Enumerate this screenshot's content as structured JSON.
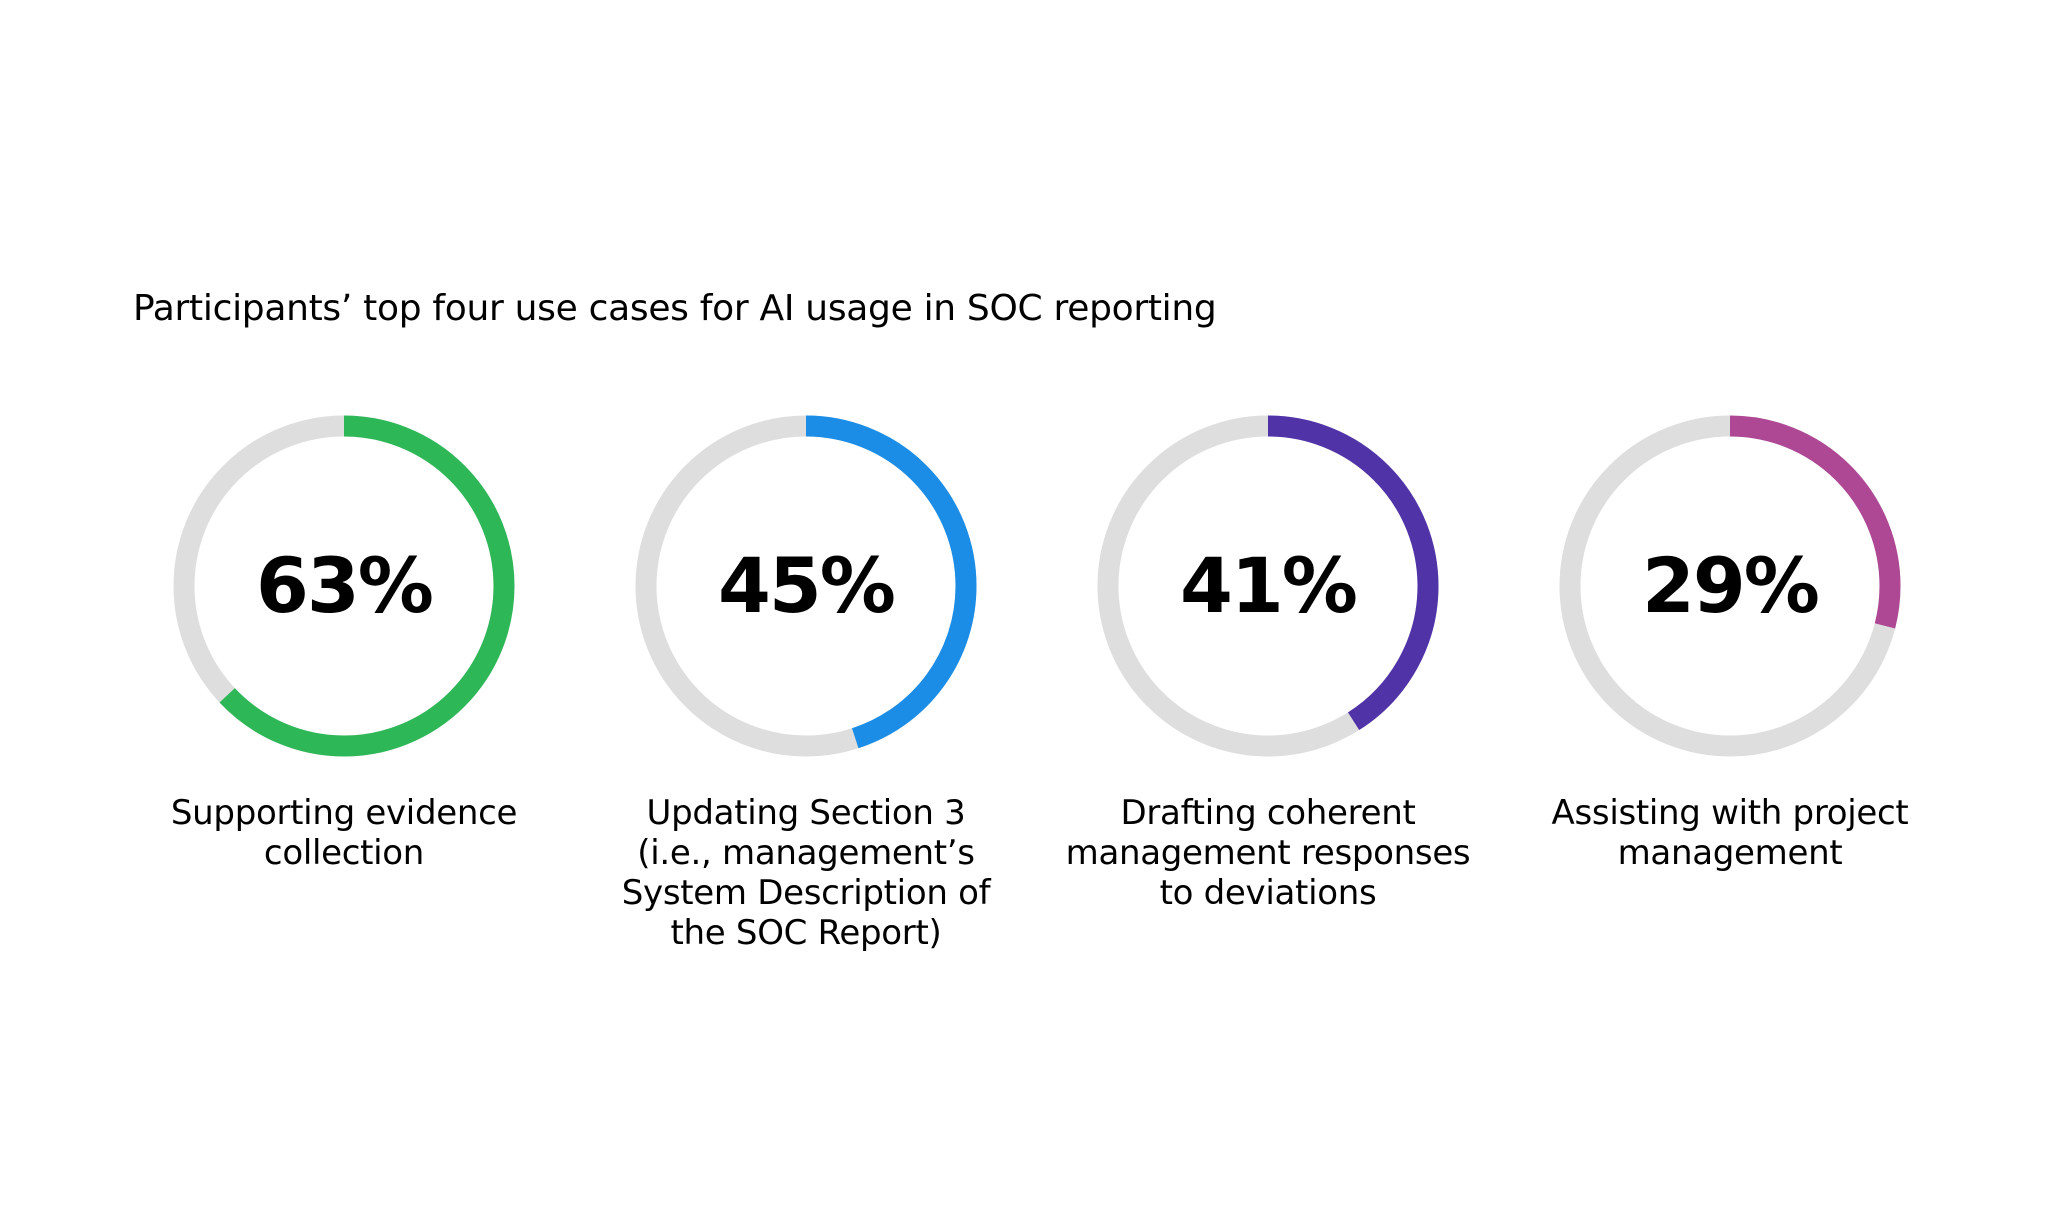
{
  "chart_data": {
    "type": "pie",
    "title": "Participants’ top four use cases for AI usage in SOC reporting",
    "items": [
      {
        "value": 63,
        "value_label": "63%",
        "label": "Supporting evidence\ncollection",
        "color": "#2eb757"
      },
      {
        "value": 45,
        "value_label": "45%",
        "label": "Updating Section 3\n(i.e., management’s\nSystem Description of\nthe SOC Report)",
        "color": "#1b8de6"
      },
      {
        "value": 41,
        "value_label": "41%",
        "label": "Drafting coherent\nmanagement responses\nto deviations",
        "color": "#5133a8"
      },
      {
        "value": 29,
        "value_label": "29%",
        "label": "Assisting with project\nmanagement",
        "color": "#ae4794"
      }
    ],
    "track_color": "#dedede",
    "legend": "none"
  }
}
